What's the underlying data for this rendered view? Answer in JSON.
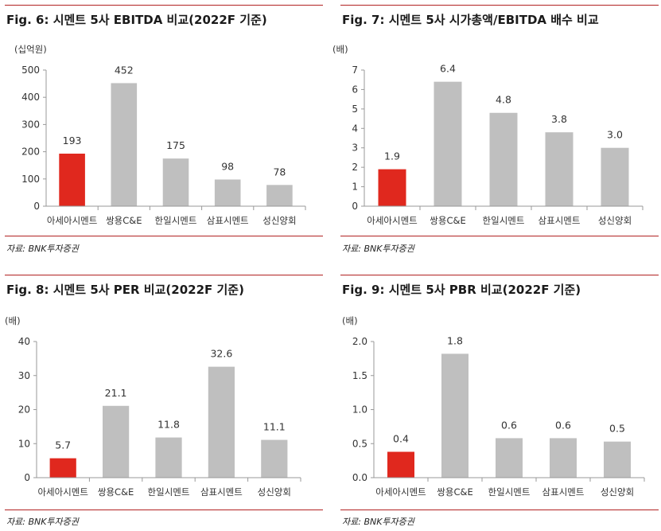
{
  "panels": [
    {
      "title": "Fig. 6: 시멘트 5사 EBITDA 비교(2022F 기준)",
      "source": "자료: BNK투자증권",
      "unit": "(십억원)"
    },
    {
      "title": "Fig. 7: 시멘트 5사 시가총액/EBITDA 배수 비교",
      "source": "자료: BNK투자증권",
      "unit": "(배)"
    },
    {
      "title": "Fig. 8: 시멘트 5사 PER 비교(2022F 기준)",
      "source": "자료: BNK투자증권",
      "unit": "(배)"
    },
    {
      "title": "Fig. 9: 시멘트 5사 PBR 비교(2022F 기준)",
      "source": "자료: BNK투자증권",
      "unit": "(배)"
    }
  ],
  "colors": {
    "highlight": "#e0281e",
    "bar": "#bfbfbf",
    "rule": "#b22222"
  },
  "chart_data": [
    {
      "type": "bar",
      "title": "Fig. 6: 시멘트 5사 EBITDA 비교(2022F 기준)",
      "ylabel": "(십억원)",
      "categories": [
        "아세아시멘트",
        "쌍용C&E",
        "한일시멘트",
        "삼표시멘트",
        "성신양회"
      ],
      "values": [
        193,
        452,
        175,
        98,
        78
      ],
      "value_labels": [
        "193",
        "452",
        "175",
        "98",
        "78"
      ],
      "ylim": [
        0,
        500
      ],
      "yticks": [
        0,
        100,
        200,
        300,
        400,
        500
      ],
      "ytick_labels": [
        "0",
        "100",
        "200",
        "300",
        "400",
        "500"
      ],
      "highlight_index": 0
    },
    {
      "type": "bar",
      "title": "Fig. 7: 시멘트 5사 시가총액/EBITDA 배수 비교",
      "ylabel": "(배)",
      "categories": [
        "아세아시멘트",
        "쌍용C&E",
        "한일시멘트",
        "삼표시멘트",
        "성신양회"
      ],
      "values": [
        1.9,
        6.4,
        4.8,
        3.8,
        3.0
      ],
      "value_labels": [
        "1.9",
        "6.4",
        "4.8",
        "3.8",
        "3.0"
      ],
      "ylim": [
        0,
        7
      ],
      "yticks": [
        0,
        1,
        2,
        3,
        4,
        5,
        6,
        7
      ],
      "ytick_labels": [
        "0",
        "1",
        "2",
        "3",
        "4",
        "5",
        "6",
        "7"
      ],
      "highlight_index": 0
    },
    {
      "type": "bar",
      "title": "Fig. 8: 시멘트 5사 PER 비교(2022F 기준)",
      "ylabel": "(배)",
      "categories": [
        "아세아시멘트",
        "쌍용C&E",
        "한일시멘트",
        "삼표시멘트",
        "성신양회"
      ],
      "values": [
        5.7,
        21.1,
        11.8,
        32.6,
        11.1
      ],
      "value_labels": [
        "5.7",
        "21.1",
        "11.8",
        "32.6",
        "11.1"
      ],
      "ylim": [
        0,
        40
      ],
      "yticks": [
        0,
        10,
        20,
        30,
        40
      ],
      "ytick_labels": [
        "0",
        "10",
        "20",
        "30",
        "40"
      ],
      "highlight_index": 0
    },
    {
      "type": "bar",
      "title": "Fig. 9: 시멘트 5사 PBR 비교(2022F 기준)",
      "ylabel": "(배)",
      "categories": [
        "아세아시멘트",
        "쌍용C&E",
        "한일시멘트",
        "삼표시멘트",
        "성신양회"
      ],
      "values": [
        0.38,
        1.82,
        0.58,
        0.58,
        0.53
      ],
      "value_labels": [
        "0.4",
        "1.8",
        "0.6",
        "0.6",
        "0.5"
      ],
      "ylim": [
        0,
        2.0
      ],
      "yticks": [
        0,
        0.5,
        1.0,
        1.5,
        2.0
      ],
      "ytick_labels": [
        "0.0",
        "0.5",
        "1.0",
        "1.5",
        "2.0"
      ],
      "highlight_index": 0
    }
  ]
}
